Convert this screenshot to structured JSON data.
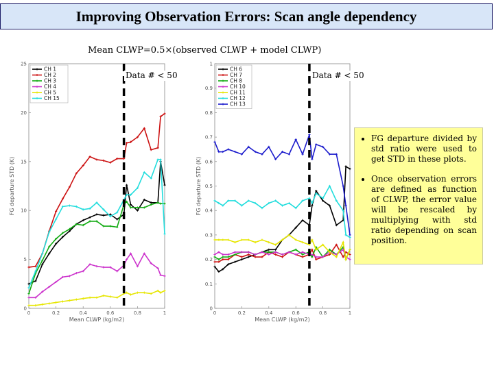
{
  "slide": {
    "title": "Improving Observation Errors: Scan angle dependency",
    "formula": "Mean CLWP=0.5×(observed CLWP + model CLWP)",
    "bullets": [
      "FG departure divided by std ratio were used to get STD in these plots.",
      "Once observation errors are defined as function of CLWP, the error value will be rescaled by multiplying with std ratio depending on scan position."
    ]
  },
  "chart_data": [
    {
      "type": "line",
      "xlabel": "Mean CLWP (kg/m2)",
      "ylabel": "FG departure STD (K)",
      "xlim": [
        0,
        1
      ],
      "ylim": [
        0,
        25
      ],
      "xticks": [
        0,
        0.2,
        0.4,
        0.6,
        0.8,
        1
      ],
      "xtick_labels": [
        "0",
        "0.2",
        "0.4",
        "0.6",
        "0.8",
        "1"
      ],
      "yticks": [
        0,
        5,
        10,
        15,
        20,
        25
      ],
      "yticklabels": [
        "0",
        "5",
        "10",
        "15",
        "20",
        "25"
      ],
      "legend_position": "top-left",
      "threshold_label": "Data # < 50",
      "threshold_x": 0.7,
      "x": [
        0,
        0.05,
        0.1,
        0.15,
        0.2,
        0.25,
        0.3,
        0.35,
        0.4,
        0.45,
        0.5,
        0.55,
        0.6,
        0.65,
        0.7,
        0.72,
        0.75,
        0.8,
        0.85,
        0.9,
        0.95,
        0.97,
        1
      ],
      "series": [
        {
          "name": "CH 1",
          "color": "#000000",
          "values": [
            2.5,
            2.8,
            4.5,
            5.6,
            6.6,
            7.3,
            7.9,
            8.6,
            9,
            9.3,
            9.6,
            9.5,
            9.6,
            9.1,
            9.6,
            12.6,
            10.6,
            10,
            11.1,
            10.8,
            10.8,
            15,
            12.6
          ]
        },
        {
          "name": "CH 2",
          "color": "#cc1111",
          "values": [
            4.2,
            4.3,
            5.6,
            7.9,
            9.9,
            11.2,
            12.4,
            13.8,
            14.6,
            15.5,
            15.2,
            15.1,
            14.9,
            15.3,
            15.3,
            16.9,
            17,
            17.5,
            18.4,
            16.2,
            16.4,
            19.6,
            19.9
          ]
        },
        {
          "name": "CH 3",
          "color": "#11aa11",
          "values": [
            1.5,
            3.6,
            4.9,
            6.3,
            7.1,
            7.7,
            8.1,
            8.6,
            8.5,
            8.9,
            8.9,
            8.4,
            8.4,
            8.3,
            10.6,
            10.9,
            10.3,
            10.3,
            10.3,
            10.6,
            10.8,
            10.7,
            10.7
          ]
        },
        {
          "name": "CH 4",
          "color": "#cc33cc",
          "values": [
            1.1,
            1.1,
            1.7,
            2.2,
            2.7,
            3.2,
            3.3,
            3.6,
            3.8,
            4.5,
            4.3,
            4.2,
            4.2,
            3.8,
            4.4,
            5,
            5.6,
            4.3,
            5.6,
            4.6,
            4.1,
            3.4,
            3.3
          ]
        },
        {
          "name": "CH 5",
          "color": "#e6e600",
          "values": [
            0.3,
            0.3,
            0.4,
            0.5,
            0.6,
            0.7,
            0.8,
            0.9,
            1,
            1.1,
            1.1,
            1.3,
            1.2,
            1.1,
            1.5,
            1.6,
            1.4,
            1.6,
            1.6,
            1.5,
            1.8,
            1.6,
            1.8
          ]
        },
        {
          "name": "CH 15",
          "color": "#22dddd",
          "values": [
            2.1,
            3.8,
            5.6,
            7.8,
            9.1,
            10.4,
            10.5,
            10.4,
            10.1,
            10.2,
            10.8,
            10.1,
            9.4,
            9.8,
            11.1,
            11.6,
            11.6,
            12.3,
            13.9,
            13.3,
            15.2,
            15.2,
            7.6
          ]
        }
      ]
    },
    {
      "type": "line",
      "xlabel": "Mean CLWP (kg/m2)",
      "ylabel": "FG departure STD (K)",
      "xlim": [
        0,
        1
      ],
      "ylim": [
        0,
        1
      ],
      "xticks": [
        0,
        0.2,
        0.4,
        0.6,
        0.8,
        1
      ],
      "xtick_labels": [
        "0",
        "0.2",
        "0.4",
        "0.6",
        "0.8",
        "1"
      ],
      "yticks": [
        0,
        0.1,
        0.2,
        0.3,
        0.4,
        0.5,
        0.6,
        0.7,
        0.8,
        0.9,
        1
      ],
      "yticklabels": [
        "0",
        "0.1",
        "0.2",
        "0.3",
        "0.4",
        "0.5",
        "0.6",
        "0.7",
        "0.8",
        "0.9",
        "1"
      ],
      "legend_position": "top-left",
      "threshold_label": "Data # < 50",
      "threshold_x": 0.7,
      "x": [
        0,
        0.03,
        0.06,
        0.1,
        0.15,
        0.2,
        0.25,
        0.3,
        0.35,
        0.4,
        0.45,
        0.5,
        0.55,
        0.6,
        0.65,
        0.7,
        0.72,
        0.75,
        0.8,
        0.85,
        0.9,
        0.95,
        0.97,
        1
      ],
      "series": [
        {
          "name": "CH 6",
          "color": "#000000",
          "values": [
            0.17,
            0.15,
            0.16,
            0.18,
            0.19,
            0.2,
            0.21,
            0.22,
            0.23,
            0.24,
            0.24,
            0.28,
            0.3,
            0.33,
            0.36,
            0.34,
            0.42,
            0.48,
            0.44,
            0.42,
            0.34,
            0.36,
            0.58,
            0.57
          ]
        },
        {
          "name": "CH 7",
          "color": "#cc1111",
          "values": [
            0.19,
            0.19,
            0.2,
            0.2,
            0.22,
            0.21,
            0.22,
            0.21,
            0.21,
            0.23,
            0.22,
            0.21,
            0.23,
            0.22,
            0.21,
            0.22,
            0.24,
            0.2,
            0.21,
            0.22,
            0.26,
            0.21,
            0.23,
            0.22
          ]
        },
        {
          "name": "CH 8",
          "color": "#11aa11",
          "values": [
            0.21,
            0.2,
            0.21,
            0.21,
            0.22,
            0.23,
            0.23,
            0.22,
            0.23,
            0.23,
            0.23,
            0.22,
            0.23,
            0.24,
            0.22,
            0.23,
            0.21,
            0.25,
            0.21,
            0.24,
            0.22,
            0.25,
            0.2,
            0.24
          ]
        },
        {
          "name": "CH 10",
          "color": "#cc33cc",
          "values": [
            0.22,
            0.23,
            0.22,
            0.22,
            0.23,
            0.23,
            0.23,
            0.22,
            0.23,
            0.22,
            0.23,
            0.22,
            0.23,
            0.22,
            0.23,
            0.22,
            0.22,
            0.21,
            0.21,
            0.23,
            0.22,
            0.24,
            0.21,
            0.2
          ]
        },
        {
          "name": "CH 11",
          "color": "#e6e600",
          "values": [
            0.28,
            0.28,
            0.28,
            0.28,
            0.27,
            0.28,
            0.28,
            0.27,
            0.28,
            0.27,
            0.26,
            0.28,
            0.3,
            0.28,
            0.27,
            0.26,
            0.28,
            0.24,
            0.26,
            0.23,
            0.21,
            0.27,
            0.2,
            0.24
          ]
        },
        {
          "name": "CH 12",
          "color": "#22dddd",
          "values": [
            0.44,
            0.43,
            0.42,
            0.44,
            0.44,
            0.42,
            0.44,
            0.43,
            0.41,
            0.43,
            0.44,
            0.42,
            0.43,
            0.41,
            0.44,
            0.45,
            0.43,
            0.47,
            0.45,
            0.5,
            0.44,
            0.4,
            0.3,
            0.29
          ]
        },
        {
          "name": "CH 13",
          "color": "#1a1acc",
          "values": [
            0.68,
            0.64,
            0.64,
            0.65,
            0.64,
            0.63,
            0.66,
            0.64,
            0.63,
            0.66,
            0.61,
            0.64,
            0.63,
            0.69,
            0.63,
            0.71,
            0.61,
            0.67,
            0.66,
            0.63,
            0.63,
            0.5,
            0.42,
            0.3
          ]
        }
      ]
    }
  ]
}
